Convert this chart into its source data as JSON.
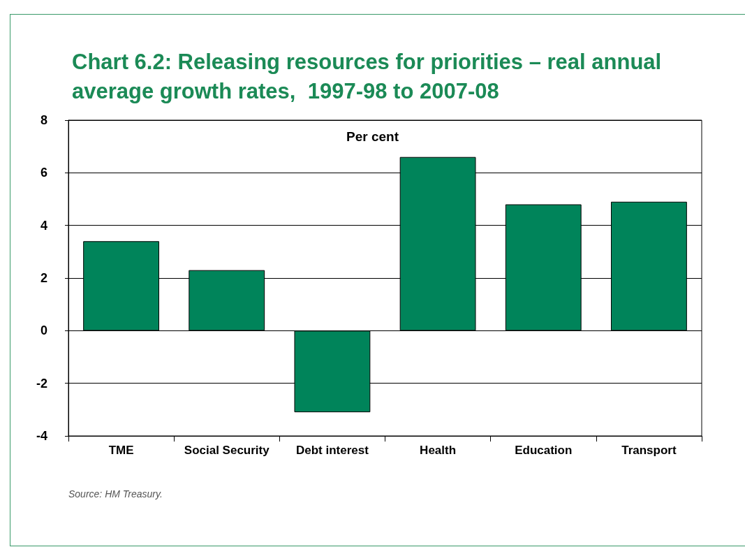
{
  "chart_data": {
    "type": "bar",
    "title": "Chart 6.2: Releasing resources for priorities – real annual average growth rates,  1997-98 to 2007-08",
    "ylabel": "Per cent",
    "categories": [
      "TME",
      "Social Security",
      "Debt interest",
      "Health",
      "Education",
      "Transport"
    ],
    "values": [
      3.4,
      2.3,
      -3.1,
      6.6,
      4.8,
      4.9
    ],
    "color": "#00845a",
    "ylim": [
      -4,
      8
    ],
    "yticks": [
      -4,
      -2,
      0,
      2,
      4,
      6,
      8
    ],
    "grid": "y",
    "annotations": [
      "Source: HM Treasury."
    ]
  }
}
